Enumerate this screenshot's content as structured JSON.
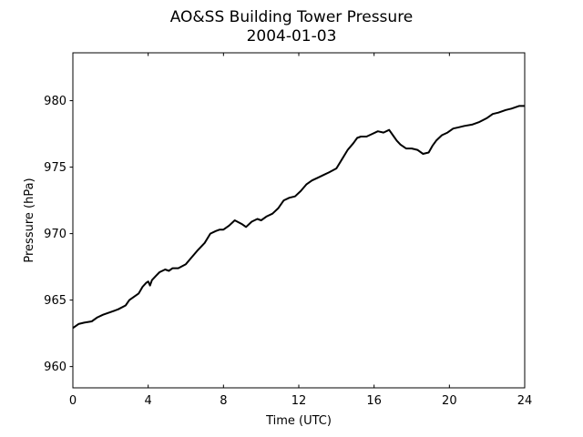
{
  "chart_data": {
    "type": "line",
    "title": "AO&SS Building Tower Pressure",
    "subtitle": "2004-01-03",
    "xlabel": "Time (UTC)",
    "ylabel": "Pressure (hPa)",
    "xlim": [
      0,
      24
    ],
    "ylim": [
      958.4,
      983.6
    ],
    "xticks": [
      0,
      4,
      8,
      12,
      16,
      20,
      24
    ],
    "yticks": [
      960,
      965,
      970,
      975,
      980
    ],
    "grid": false,
    "line_color": "#000000",
    "series": [
      {
        "x": [
          0,
          0.3,
          0.6,
          1.0,
          1.3,
          1.6,
          2.0,
          2.4,
          2.8,
          3.0,
          3.2,
          3.5,
          3.7,
          3.9,
          4.0,
          4.1,
          4.2,
          4.4,
          4.6,
          4.9,
          5.1,
          5.3,
          5.6,
          6.0,
          6.3,
          6.6,
          7.0,
          7.3,
          7.6,
          7.8,
          8.0,
          8.3,
          8.6,
          9.0,
          9.2,
          9.5,
          9.8,
          10.0,
          10.3,
          10.6,
          10.9,
          11.2,
          11.5,
          11.8,
          12.1,
          12.4,
          12.7,
          13.0,
          13.3,
          13.6,
          14.0,
          14.3,
          14.6,
          14.9,
          15.1,
          15.3,
          15.6,
          15.9,
          16.2,
          16.5,
          16.8,
          17.0,
          17.2,
          17.4,
          17.7,
          18.0,
          18.3,
          18.6,
          18.9,
          19.1,
          19.3,
          19.6,
          19.9,
          20.2,
          20.5,
          20.8,
          21.2,
          21.6,
          22.0,
          22.3,
          22.6,
          23.0,
          23.3,
          23.7,
          24.0
        ],
        "y": [
          962.9,
          963.2,
          963.3,
          963.4,
          963.7,
          963.9,
          964.1,
          964.3,
          964.6,
          965.0,
          965.2,
          965.5,
          966.0,
          966.3,
          966.4,
          966.1,
          966.5,
          966.8,
          967.1,
          967.3,
          967.2,
          967.4,
          967.4,
          967.7,
          968.2,
          968.7,
          969.3,
          970.0,
          970.2,
          970.3,
          970.3,
          970.6,
          971.0,
          970.7,
          970.5,
          970.9,
          971.1,
          971.0,
          971.3,
          971.5,
          971.9,
          972.5,
          972.7,
          972.8,
          973.2,
          973.7,
          974.0,
          974.2,
          974.4,
          974.6,
          974.9,
          975.6,
          976.3,
          976.8,
          977.2,
          977.3,
          977.3,
          977.5,
          977.7,
          977.6,
          977.8,
          977.4,
          977.0,
          976.7,
          976.4,
          976.4,
          976.3,
          976.0,
          976.1,
          976.6,
          977.0,
          977.4,
          977.6,
          977.9,
          978.0,
          978.1,
          978.2,
          978.4,
          978.7,
          979.0,
          979.1,
          979.3,
          979.4,
          979.6,
          979.6
        ]
      }
    ]
  }
}
